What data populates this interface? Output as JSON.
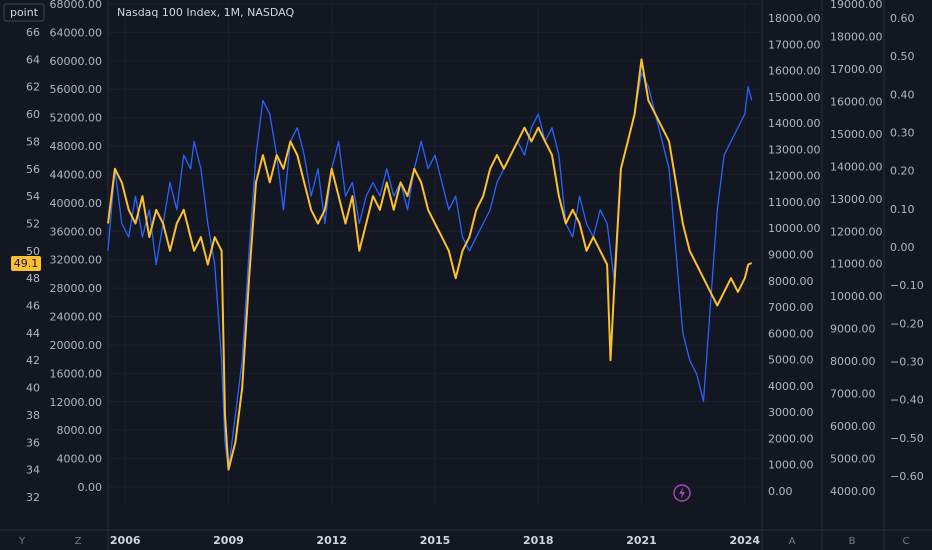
{
  "header": {
    "title": "Nasdaq 100 Index, 1M, NASDAQ",
    "unit_button": "point"
  },
  "colors": {
    "background": "#131722",
    "grid": "#1f2430",
    "divider": "#2a2e39",
    "blue_series": "#2962ff",
    "yellow_series": "#fbc02d",
    "badge": "#fbc02d",
    "lightning": "#ab47bc"
  },
  "price_badge": "49.1",
  "bottom_bar": {
    "left_letters": [
      "Y",
      "Z"
    ],
    "right_letters": [
      "A",
      "B",
      "C"
    ]
  },
  "lightning_icon": "lightning-icon",
  "chart_data": {
    "type": "line",
    "title": "Nasdaq 100 Index, 1M, NASDAQ",
    "x_ticks": [
      "2006",
      "2009",
      "2012",
      "2015",
      "2018",
      "2021",
      "2024"
    ],
    "axes": {
      "left_outer": {
        "ticks": [
          "66",
          "64",
          "62",
          "60",
          "58",
          "56",
          "54",
          "52",
          "50",
          "48",
          "46",
          "44",
          "42",
          "40",
          "38",
          "36",
          "34",
          "32"
        ],
        "range": [
          32,
          67
        ]
      },
      "left_inner": {
        "ticks": [
          "68000.00",
          "64000.00",
          "60000.00",
          "56000.00",
          "52000.00",
          "48000.00",
          "44000.00",
          "40000.00",
          "36000.00",
          "32000.00",
          "28000.00",
          "24000.00",
          "20000.00",
          "16000.00",
          "12000.00",
          "8000.00",
          "4000.00",
          "0.00"
        ],
        "range": [
          0,
          68000
        ]
      },
      "right_1": {
        "ticks": [
          "18000.00",
          "17000.00",
          "16000.00",
          "15000.00",
          "14000.00",
          "13000.00",
          "12000.00",
          "11000.00",
          "10000.00",
          "9000.00",
          "8000.00",
          "7000.00",
          "6000.00",
          "5000.00",
          "4000.00",
          "3000.00",
          "2000.00",
          "1000.00",
          "0.00"
        ],
        "range": [
          0,
          18000
        ]
      },
      "right_2": {
        "ticks": [
          "19000.00",
          "18000.00",
          "17000.00",
          "16000.00",
          "15000.00",
          "14000.00",
          "13000.00",
          "12000.00",
          "11000.00",
          "10000.00",
          "9000.00",
          "8000.00",
          "7000.00",
          "6000.00",
          "5000.00",
          "4000.00"
        ],
        "range": [
          4000,
          19000
        ]
      },
      "right_3": {
        "ticks": [
          "0.60",
          "0.50",
          "0.40",
          "0.30",
          "0.20",
          "0.10",
          "0.00",
          "−0.10",
          "−0.20",
          "−0.30",
          "−0.40",
          "−0.50",
          "−0.60"
        ],
        "range": [
          -0.6,
          0.6
        ]
      }
    },
    "x_range": [
      2005.5,
      2024.5
    ],
    "series": [
      {
        "axis": "left_outer",
        "color": "#2962ff",
        "points": [
          [
            2005.5,
            50
          ],
          [
            2005.7,
            56
          ],
          [
            2005.9,
            52
          ],
          [
            2006.1,
            51
          ],
          [
            2006.3,
            54
          ],
          [
            2006.5,
            51
          ],
          [
            2006.7,
            53
          ],
          [
            2006.9,
            49
          ],
          [
            2007.1,
            52
          ],
          [
            2007.3,
            55
          ],
          [
            2007.5,
            53
          ],
          [
            2007.7,
            57
          ],
          [
            2007.9,
            56
          ],
          [
            2008.0,
            58
          ],
          [
            2008.2,
            56
          ],
          [
            2008.4,
            52
          ],
          [
            2008.6,
            49
          ],
          [
            2008.8,
            42
          ],
          [
            2008.9,
            36
          ],
          [
            2009.0,
            34
          ],
          [
            2009.2,
            38
          ],
          [
            2009.4,
            42
          ],
          [
            2009.6,
            50
          ],
          [
            2009.8,
            57
          ],
          [
            2010.0,
            61
          ],
          [
            2010.2,
            60
          ],
          [
            2010.4,
            57
          ],
          [
            2010.6,
            53
          ],
          [
            2010.8,
            58
          ],
          [
            2011.0,
            59
          ],
          [
            2011.2,
            57
          ],
          [
            2011.4,
            54
          ],
          [
            2011.6,
            56
          ],
          [
            2011.8,
            52
          ],
          [
            2012.0,
            56
          ],
          [
            2012.2,
            58
          ],
          [
            2012.4,
            54
          ],
          [
            2012.6,
            55
          ],
          [
            2012.8,
            52
          ],
          [
            2013.0,
            54
          ],
          [
            2013.2,
            55
          ],
          [
            2013.4,
            54
          ],
          [
            2013.6,
            56
          ],
          [
            2013.8,
            54
          ],
          [
            2014.0,
            55
          ],
          [
            2014.2,
            53
          ],
          [
            2014.4,
            56
          ],
          [
            2014.6,
            58
          ],
          [
            2014.8,
            56
          ],
          [
            2015.0,
            57
          ],
          [
            2015.2,
            55
          ],
          [
            2015.4,
            53
          ],
          [
            2015.6,
            54
          ],
          [
            2015.8,
            51
          ],
          [
            2016.0,
            50
          ],
          [
            2016.2,
            51
          ],
          [
            2016.4,
            52
          ],
          [
            2016.6,
            53
          ],
          [
            2016.8,
            55
          ],
          [
            2017.0,
            56
          ],
          [
            2017.2,
            57
          ],
          [
            2017.4,
            58
          ],
          [
            2017.6,
            57
          ],
          [
            2017.8,
            59
          ],
          [
            2018.0,
            60
          ],
          [
            2018.2,
            58
          ],
          [
            2018.4,
            59
          ],
          [
            2018.6,
            57
          ],
          [
            2018.8,
            52
          ],
          [
            2019.0,
            51
          ],
          [
            2019.2,
            54
          ],
          [
            2019.4,
            52
          ],
          [
            2019.6,
            51
          ],
          [
            2019.8,
            53
          ],
          [
            2020.0,
            52
          ],
          [
            2020.2,
            48
          ],
          [
            2020.4,
            56
          ],
          [
            2020.6,
            58
          ],
          [
            2020.8,
            60
          ],
          [
            2021.0,
            63
          ],
          [
            2021.2,
            62
          ],
          [
            2021.4,
            60
          ],
          [
            2021.6,
            58
          ],
          [
            2021.8,
            56
          ],
          [
            2022.0,
            50
          ],
          [
            2022.2,
            44
          ],
          [
            2022.4,
            42
          ],
          [
            2022.6,
            41
          ],
          [
            2022.8,
            39
          ],
          [
            2023.0,
            46
          ],
          [
            2023.2,
            53
          ],
          [
            2023.4,
            57
          ],
          [
            2023.6,
            58
          ],
          [
            2023.8,
            59
          ],
          [
            2024.0,
            60
          ],
          [
            2024.1,
            62
          ],
          [
            2024.2,
            61
          ]
        ]
      },
      {
        "axis": "left_outer",
        "color": "#fbc02d",
        "points": [
          [
            2005.5,
            52
          ],
          [
            2005.7,
            56
          ],
          [
            2005.9,
            55
          ],
          [
            2006.1,
            53
          ],
          [
            2006.3,
            52
          ],
          [
            2006.5,
            54
          ],
          [
            2006.7,
            51
          ],
          [
            2006.9,
            53
          ],
          [
            2007.1,
            52
          ],
          [
            2007.3,
            50
          ],
          [
            2007.5,
            52
          ],
          [
            2007.7,
            53
          ],
          [
            2007.9,
            51
          ],
          [
            2008.0,
            50
          ],
          [
            2008.2,
            51
          ],
          [
            2008.4,
            49
          ],
          [
            2008.6,
            51
          ],
          [
            2008.8,
            50
          ],
          [
            2008.9,
            38
          ],
          [
            2009.0,
            34
          ],
          [
            2009.2,
            36
          ],
          [
            2009.4,
            40
          ],
          [
            2009.6,
            48
          ],
          [
            2009.8,
            55
          ],
          [
            2010.0,
            57
          ],
          [
            2010.2,
            55
          ],
          [
            2010.4,
            57
          ],
          [
            2010.6,
            56
          ],
          [
            2010.8,
            58
          ],
          [
            2011.0,
            57
          ],
          [
            2011.2,
            55
          ],
          [
            2011.4,
            53
          ],
          [
            2011.6,
            52
          ],
          [
            2011.8,
            53
          ],
          [
            2012.0,
            56
          ],
          [
            2012.2,
            54
          ],
          [
            2012.4,
            52
          ],
          [
            2012.6,
            54
          ],
          [
            2012.8,
            50
          ],
          [
            2013.0,
            52
          ],
          [
            2013.2,
            54
          ],
          [
            2013.4,
            53
          ],
          [
            2013.6,
            55
          ],
          [
            2013.8,
            53
          ],
          [
            2014.0,
            55
          ],
          [
            2014.2,
            54
          ],
          [
            2014.4,
            56
          ],
          [
            2014.6,
            55
          ],
          [
            2014.8,
            53
          ],
          [
            2015.0,
            52
          ],
          [
            2015.2,
            51
          ],
          [
            2015.4,
            50
          ],
          [
            2015.6,
            48
          ],
          [
            2015.8,
            50
          ],
          [
            2016.0,
            51
          ],
          [
            2016.2,
            53
          ],
          [
            2016.4,
            54
          ],
          [
            2016.6,
            56
          ],
          [
            2016.8,
            57
          ],
          [
            2017.0,
            56
          ],
          [
            2017.2,
            57
          ],
          [
            2017.4,
            58
          ],
          [
            2017.6,
            59
          ],
          [
            2017.8,
            58
          ],
          [
            2018.0,
            59
          ],
          [
            2018.2,
            58
          ],
          [
            2018.4,
            57
          ],
          [
            2018.6,
            54
          ],
          [
            2018.8,
            52
          ],
          [
            2019.0,
            53
          ],
          [
            2019.2,
            52
          ],
          [
            2019.4,
            50
          ],
          [
            2019.6,
            51
          ],
          [
            2019.8,
            50
          ],
          [
            2020.0,
            49
          ],
          [
            2020.1,
            42
          ],
          [
            2020.2,
            47
          ],
          [
            2020.4,
            56
          ],
          [
            2020.6,
            58
          ],
          [
            2020.8,
            60
          ],
          [
            2021.0,
            64
          ],
          [
            2021.2,
            61
          ],
          [
            2021.4,
            60
          ],
          [
            2021.6,
            59
          ],
          [
            2021.8,
            58
          ],
          [
            2022.0,
            55
          ],
          [
            2022.2,
            52
          ],
          [
            2022.4,
            50
          ],
          [
            2022.6,
            49
          ],
          [
            2022.8,
            48
          ],
          [
            2023.0,
            47
          ],
          [
            2023.2,
            46
          ],
          [
            2023.4,
            47
          ],
          [
            2023.6,
            48
          ],
          [
            2023.8,
            47
          ],
          [
            2024.0,
            48
          ],
          [
            2024.1,
            49
          ],
          [
            2024.2,
            49.1
          ]
        ]
      }
    ]
  }
}
